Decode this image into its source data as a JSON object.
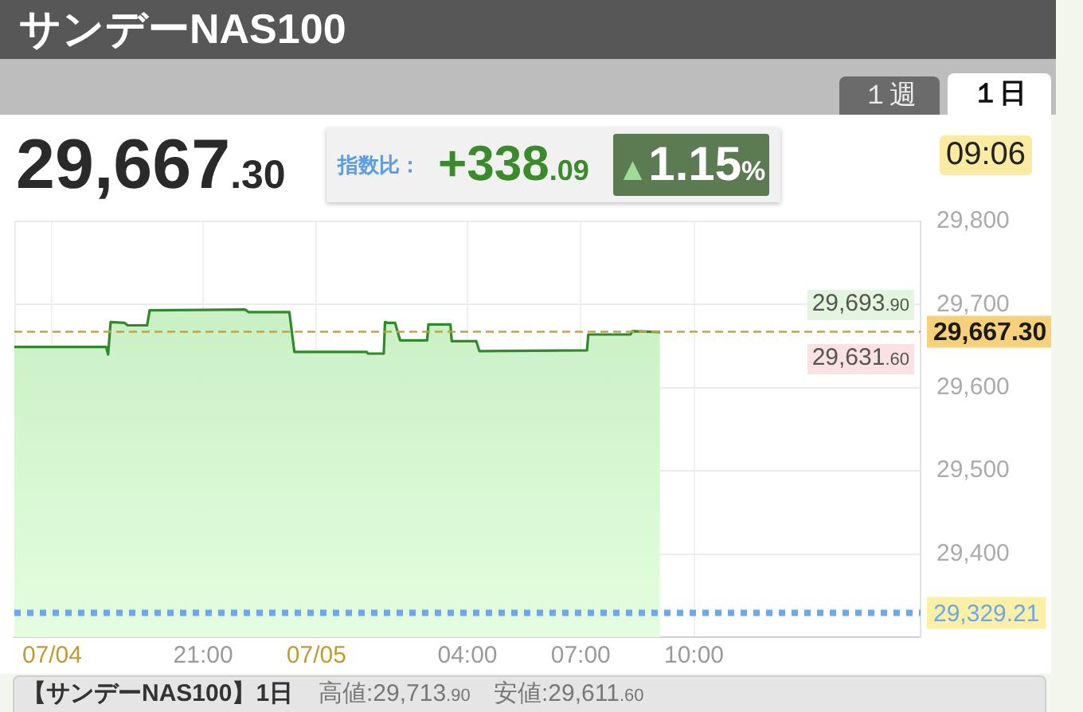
{
  "chart_data": {
    "type": "area",
    "title": "サンデーNAS100",
    "x": [
      "--07-04T16:00",
      "--07-04T18:26",
      "--07-04T18:29",
      "--07-04T18:33",
      "--07-04T18:55",
      "--07-04T19:00",
      "--07-04T19:31",
      "--07-04T19:35",
      "--07-04T22:07",
      "--07-04T22:12",
      "--07-04T23:17",
      "--07-04T23:25",
      "--07-05T01:20",
      "--07-05T01:22",
      "--07-05T01:47",
      "--07-05T01:49",
      "--07-05T01:53",
      "--07-05T02:05",
      "--07-05T02:13",
      "--07-05T02:56",
      "--07-05T02:58",
      "--07-05T03:33",
      "--07-05T03:35",
      "--07-05T04:14",
      "--07-05T04:19",
      "--07-05T07:10",
      "--07-05T07:12",
      "--07-05T08:19",
      "--07-05T08:22",
      "--07-05T09:06"
    ],
    "values": [
      29649,
      29649,
      29640,
      29679,
      29678,
      29675,
      29675,
      29693,
      29694,
      29691,
      29691,
      29643,
      29643,
      29641,
      29641,
      29679,
      29678,
      29678,
      29657,
      29657,
      29676,
      29676,
      29656,
      29656,
      29644,
      29645,
      29664,
      29664,
      29668,
      29667
    ],
    "color": "#2f8a2a",
    "xlim": [
      "--07-04T16:00",
      "--07-05T16:00"
    ],
    "xticks": [
      {
        "value": "--07-04T17:00",
        "label": "07/04"
      },
      {
        "value": "--07-04T21:00",
        "label": "21:00"
      },
      {
        "value": "--07-05T00:00",
        "label": "07/05"
      },
      {
        "value": "--07-05T04:00",
        "label": "04:00"
      },
      {
        "value": "--07-05T07:00",
        "label": "07:00"
      },
      {
        "value": "--07-05T10:00",
        "label": "10:00"
      }
    ],
    "ylim": [
      29300,
      29800
    ],
    "yticks": [
      {
        "value": 29400,
        "label": "29,400"
      },
      {
        "value": 29500,
        "label": "29,500"
      },
      {
        "value": 29600,
        "label": "29,600"
      },
      {
        "value": 29700,
        "label": "29,700"
      },
      {
        "value": 29800,
        "label": "29,800"
      }
    ],
    "grid": true,
    "ref_lines": [
      {
        "axis": "y",
        "value": 29667.3,
        "label": "29,667.30",
        "color": "#c9a23a",
        "line_style": "dashed"
      },
      {
        "axis": "y",
        "value": 29329.21,
        "label": "29,329.21",
        "color": "#6fa6ee",
        "line_style": "dotted"
      }
    ],
    "annotations": [
      "１週",
      "１日",
      "29,667.30",
      "指数比：",
      "+338.09",
      "▲1.15%",
      "09:06",
      "【サンデーNAS100】1日",
      "高値:29,713.90",
      "安値:29,611.60",
      "29,693.90",
      "29,631.60"
    ]
  }
}
